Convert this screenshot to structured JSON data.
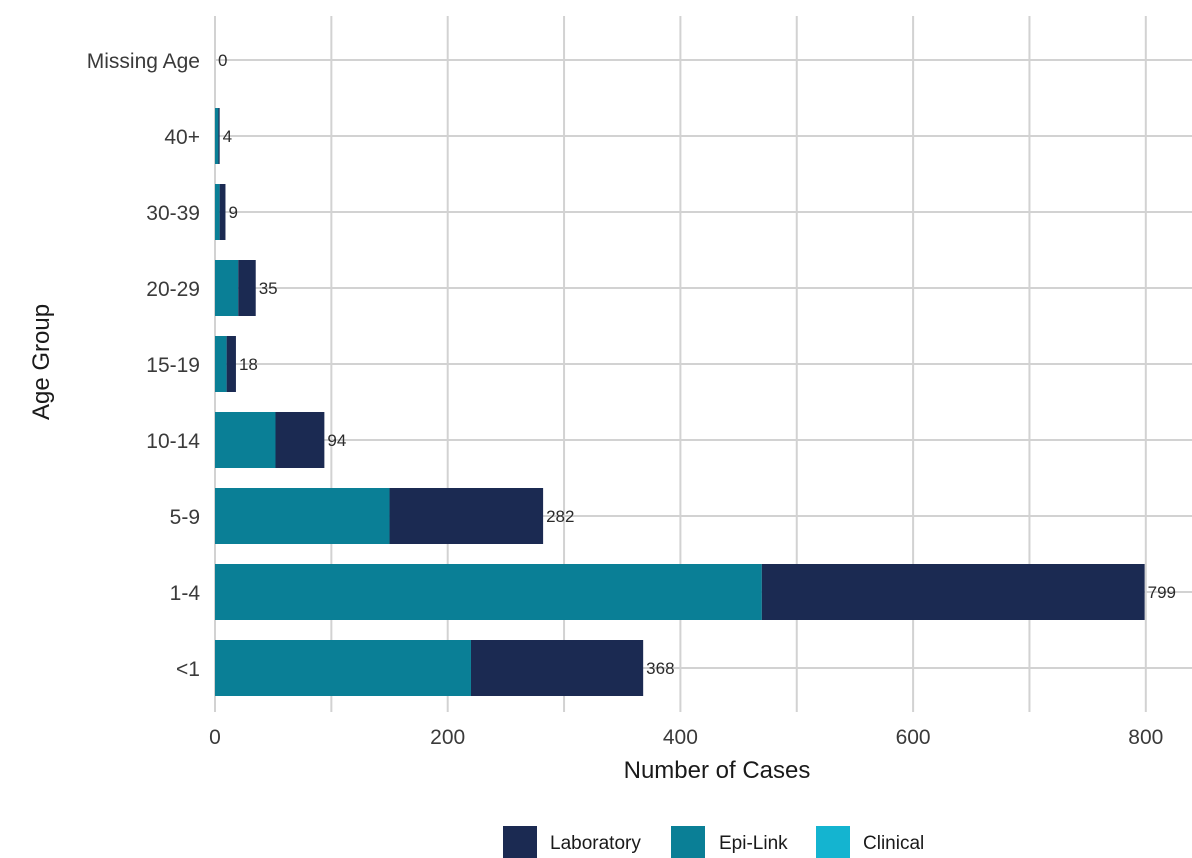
{
  "chart_data": {
    "type": "bar",
    "orientation": "horizontal",
    "stacked": true,
    "categories": [
      "Missing Age",
      "40+",
      "30-39",
      "20-29",
      "15-19",
      "10-14",
      "5-9",
      "1-4",
      "<1"
    ],
    "series": [
      {
        "name": "Clinical",
        "color": "#14b4d0",
        "values": [
          0,
          0,
          0,
          0,
          0,
          0,
          0,
          0,
          0
        ]
      },
      {
        "name": "Epi-Link",
        "color": "#0a7f96",
        "values": [
          0,
          3,
          4,
          20,
          10,
          52,
          150,
          470,
          220
        ]
      },
      {
        "name": "Laboratory",
        "color": "#1b2a52",
        "values": [
          0,
          1,
          5,
          15,
          8,
          42,
          132,
          329,
          148
        ]
      }
    ],
    "totals": [
      0,
      4,
      9,
      35,
      18,
      94,
      282,
      799,
      368
    ],
    "xlabel": "Number of Cases",
    "ylabel": "Age Group",
    "xlim": [
      0,
      840
    ],
    "xticks": [
      0,
      200,
      400,
      600,
      800
    ],
    "grid": true,
    "legend": {
      "position": "bottom",
      "items": [
        "Laboratory",
        "Epi-Link",
        "Clinical"
      ]
    }
  }
}
